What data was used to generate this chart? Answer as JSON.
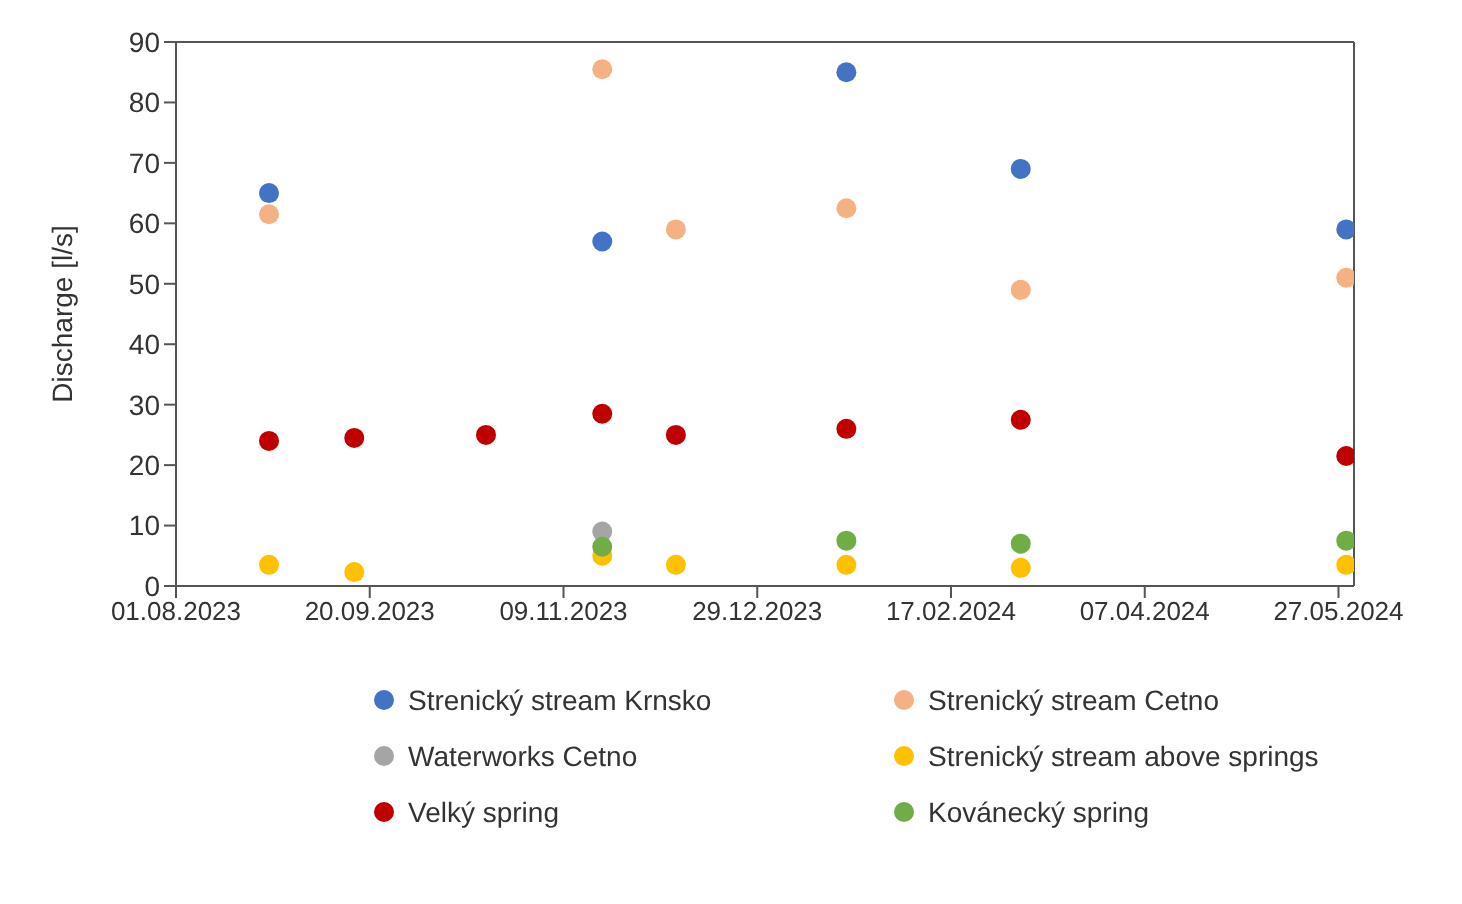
{
  "chart_data": {
    "type": "scatter",
    "ylabel": "Discharge [l/s]",
    "ylim": [
      0,
      90
    ],
    "yticks": [
      0,
      10,
      20,
      30,
      40,
      50,
      60,
      70,
      80,
      90
    ],
    "xlim": [
      "2023-08-01",
      "2024-05-31"
    ],
    "xticks": [
      {
        "value": "2023-08-01",
        "label": "01.08.2023"
      },
      {
        "value": "2023-09-20",
        "label": "20.09.2023"
      },
      {
        "value": "2023-11-09",
        "label": "09.11.2023"
      },
      {
        "value": "2023-12-29",
        "label": "29.12.2023"
      },
      {
        "value": "2024-02-17",
        "label": "17.02.2024"
      },
      {
        "value": "2024-04-07",
        "label": "07.04.2024"
      },
      {
        "value": "2024-05-27",
        "label": "27.05.2024"
      }
    ],
    "grid": false,
    "legend": "bottom",
    "marker": "circle",
    "series": [
      {
        "name": "Strenický stream Krnsko",
        "color": "#4472c4",
        "x": [
          "2023-08-25",
          "2023-11-19",
          "2024-01-21",
          "2024-03-06",
          "2024-05-29"
        ],
        "values": [
          65,
          57,
          85,
          69,
          59
        ]
      },
      {
        "name": "Strenický stream Cetno",
        "color": "#f4b183",
        "x": [
          "2023-08-25",
          "2023-11-19",
          "2023-12-08",
          "2024-01-21",
          "2024-03-06",
          "2024-05-29"
        ],
        "values": [
          61.5,
          85.5,
          59,
          62.5,
          49,
          51
        ]
      },
      {
        "name": "Waterworks Cetno",
        "color": "#a5a5a5",
        "x": [
          "2023-11-19"
        ],
        "values": [
          9
        ]
      },
      {
        "name": "Strenický stream above springs",
        "color": "#ffc000",
        "x": [
          "2023-08-25",
          "2023-09-16",
          "2023-11-19",
          "2023-12-08",
          "2024-01-21",
          "2024-03-06",
          "2024-05-29"
        ],
        "values": [
          3.5,
          2.3,
          5,
          3.5,
          3.5,
          3,
          3.5
        ]
      },
      {
        "name": "Velký spring",
        "color": "#c00000",
        "x": [
          "2023-08-25",
          "2023-09-16",
          "2023-10-20",
          "2023-11-19",
          "2023-12-08",
          "2024-01-21",
          "2024-03-06",
          "2024-05-29"
        ],
        "values": [
          24,
          24.5,
          25,
          28.5,
          25,
          26,
          27.5,
          21.5
        ]
      },
      {
        "name": "Kovánecký spring",
        "color": "#70ad47",
        "x": [
          "2023-11-19",
          "2024-01-21",
          "2024-03-06",
          "2024-05-29"
        ],
        "values": [
          6.5,
          7.5,
          7,
          7.5
        ]
      }
    ]
  }
}
